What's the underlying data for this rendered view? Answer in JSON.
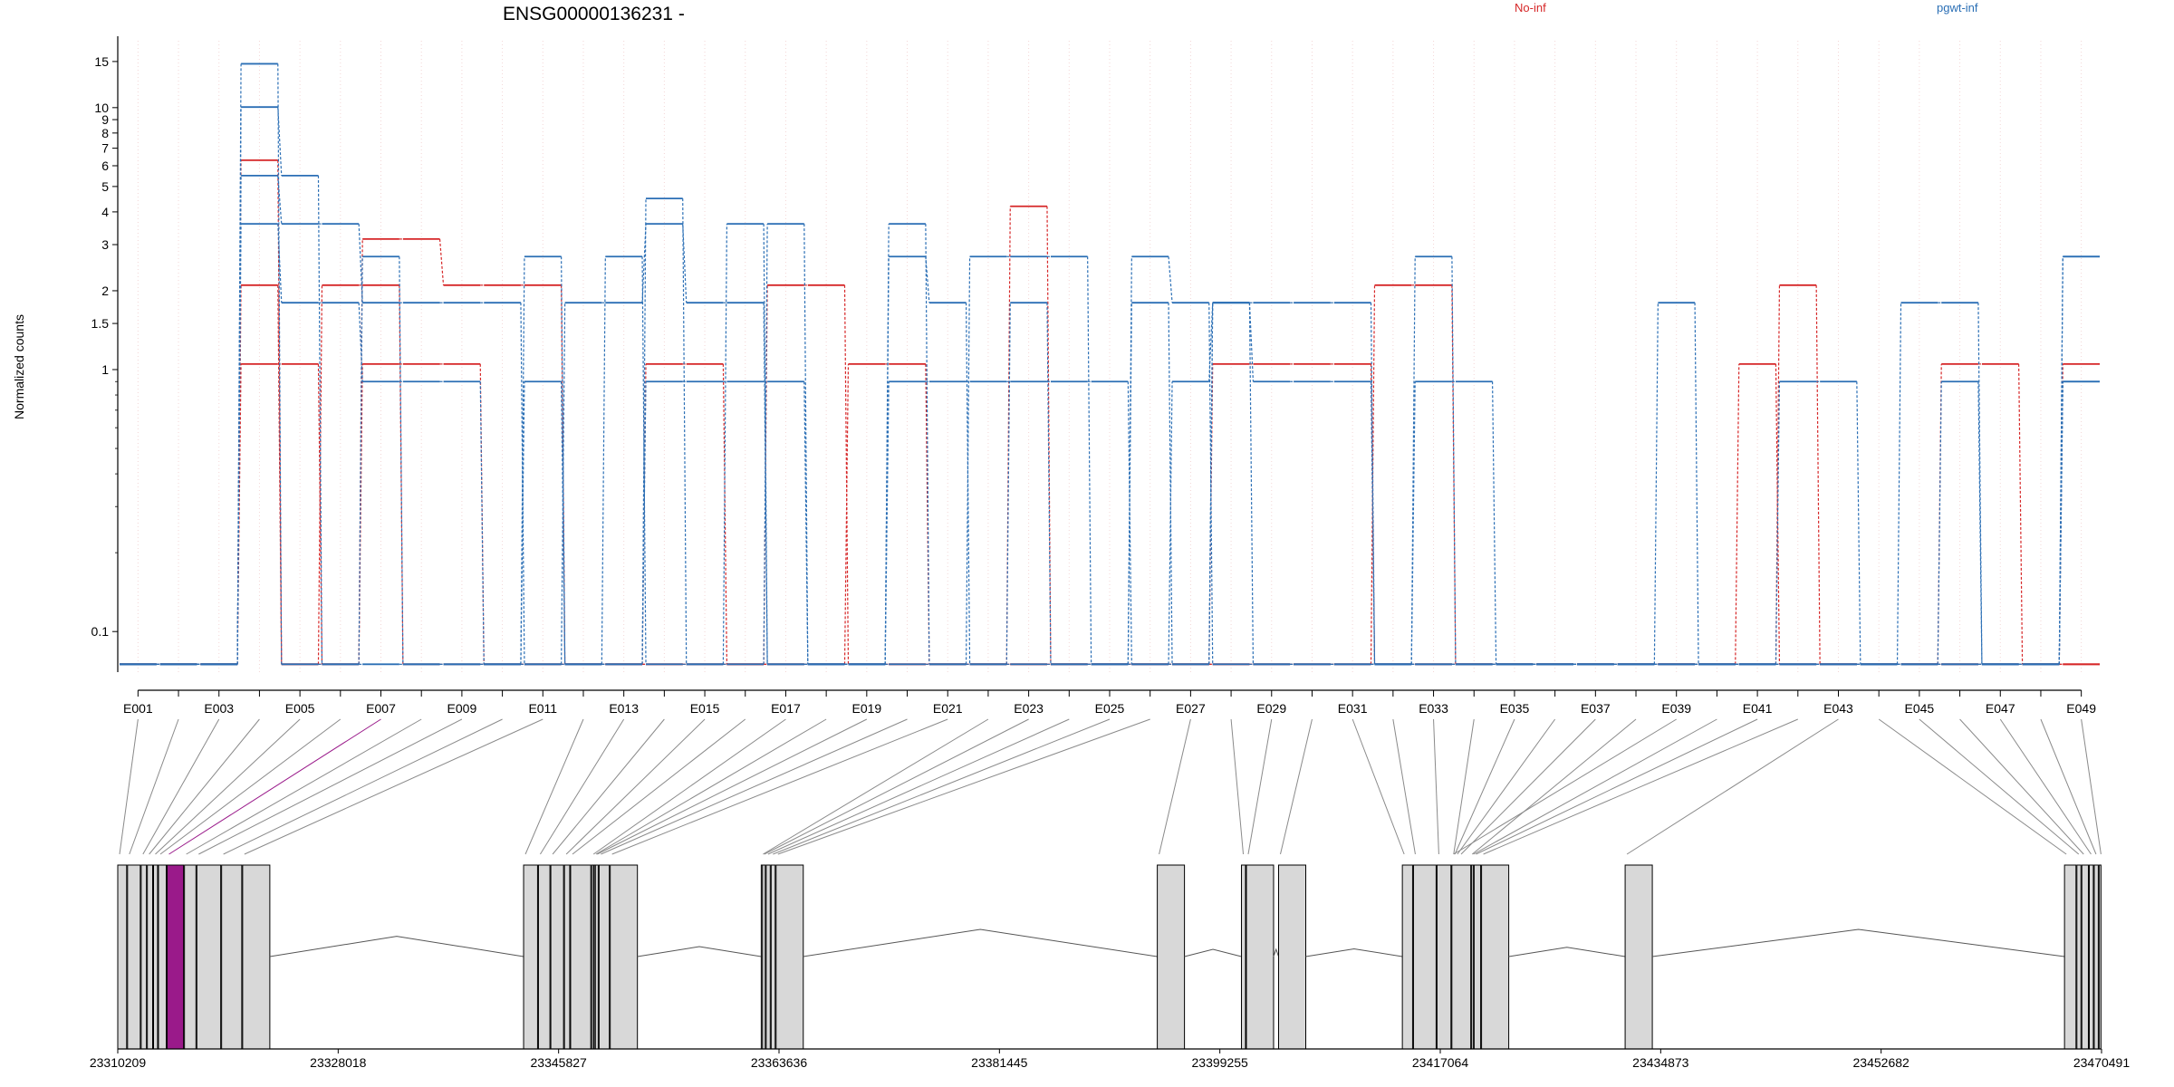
{
  "chart_data": {
    "type": "line",
    "title": "ENSG00000136231 -",
    "ylabel": "Normalized counts",
    "yscale": "log",
    "ylim": [
      0.07,
      18
    ],
    "y_ticks": [
      {
        "value": 0.1,
        "label": "0.1"
      },
      {
        "value": 1,
        "label": "1"
      },
      {
        "value": 1.5,
        "label": "1.5"
      },
      {
        "value": 2,
        "label": "2"
      },
      {
        "value": 3,
        "label": "3"
      },
      {
        "value": 4,
        "label": "4"
      },
      {
        "value": 5,
        "label": "5"
      },
      {
        "value": 6,
        "label": "6"
      },
      {
        "value": 7,
        "label": "7"
      },
      {
        "value": 8,
        "label": "8"
      },
      {
        "value": 9,
        "label": "9"
      },
      {
        "value": 10,
        "label": "10"
      },
      {
        "value": 15,
        "label": "15"
      }
    ],
    "zero_value": 0.075,
    "x_tick_labels": [
      "E001",
      "E003",
      "E005",
      "E007",
      "E009",
      "E011",
      "E013",
      "E015",
      "E017",
      "E019",
      "E021",
      "E023",
      "E025",
      "E027",
      "E029",
      "E031",
      "E033",
      "E035",
      "E037",
      "E039",
      "E041",
      "E043",
      "E045",
      "E047",
      "E049"
    ],
    "exon_count": 49,
    "grid": "vertical-dotted",
    "legend_position": "top",
    "legend": [
      {
        "name": "No-inf",
        "color": "#d62728"
      },
      {
        "name": "pgwt-inf",
        "color": "#2b6fb5"
      }
    ],
    "series": [
      {
        "group": "No-inf",
        "color": "#d62728",
        "values": [
          0,
          0,
          0,
          6.3,
          0,
          0,
          3.15,
          3.15,
          2.1,
          2.1,
          2.1,
          0,
          0,
          0,
          0,
          0,
          0,
          0,
          0,
          0,
          0,
          0,
          4.2,
          0,
          0,
          0,
          0,
          0,
          0,
          0,
          0,
          0,
          0,
          0,
          0,
          0,
          0,
          0,
          0,
          0,
          0,
          0,
          0,
          0,
          0,
          0,
          0,
          0,
          0
        ]
      },
      {
        "group": "No-inf",
        "color": "#d62728",
        "values": [
          0,
          0,
          0,
          2.1,
          0,
          2.1,
          2.1,
          0,
          0,
          0,
          0,
          0,
          0,
          0,
          0,
          0,
          2.1,
          2.1,
          0,
          0,
          0,
          0,
          0,
          0,
          0,
          0,
          0,
          0,
          0,
          0,
          0,
          2.1,
          2.1,
          0,
          0,
          0,
          0,
          0,
          0,
          0,
          0,
          2.1,
          0,
          0,
          0,
          0,
          0,
          0,
          0
        ]
      },
      {
        "group": "No-inf",
        "color": "#d62728",
        "values": [
          0,
          0,
          0,
          1.05,
          1.05,
          0,
          1.05,
          1.05,
          1.05,
          0,
          0,
          0,
          0,
          1.05,
          1.05,
          0,
          0,
          0,
          1.05,
          1.05,
          0,
          0,
          0,
          0,
          0,
          0,
          0,
          1.05,
          1.05,
          1.05,
          1.05,
          0,
          0,
          0,
          0,
          0,
          0,
          0,
          0,
          0,
          1.05,
          0,
          0,
          0,
          0,
          1.05,
          1.05,
          0,
          1.05
        ]
      },
      {
        "group": "pgwt-inf",
        "color": "#2b6fb5",
        "values": [
          0,
          0,
          0,
          14.7,
          0,
          0,
          0,
          0,
          0,
          0,
          0,
          0,
          0,
          4.5,
          0,
          3.6,
          0,
          0,
          0,
          3.6,
          0,
          0,
          0,
          0,
          0,
          2.7,
          1.8,
          0,
          0,
          0,
          0,
          0,
          2.7,
          0,
          0,
          0,
          0,
          0,
          0,
          0,
          0,
          0,
          0,
          0,
          0,
          0,
          0,
          0,
          2.7
        ]
      },
      {
        "group": "pgwt-inf",
        "color": "#2b6fb5",
        "values": [
          0,
          0,
          0,
          10.05,
          5.5,
          0,
          2.7,
          0,
          0,
          0,
          2.7,
          0,
          2.7,
          0,
          0,
          0,
          3.6,
          0,
          0,
          0,
          0,
          2.7,
          2.7,
          2.7,
          0,
          0,
          0,
          1.8,
          0,
          0,
          0,
          0,
          0,
          0,
          0,
          0,
          0,
          0,
          1.8,
          0,
          0,
          0,
          0,
          0,
          1.8,
          1.8,
          0,
          0,
          2.7
        ]
      },
      {
        "group": "pgwt-inf",
        "color": "#2b6fb5",
        "values": [
          0,
          0,
          0,
          5.5,
          3.6,
          3.6,
          1.8,
          1.8,
          1.8,
          1.8,
          0,
          1.8,
          1.8,
          3.6,
          1.8,
          1.8,
          0,
          0,
          0,
          2.7,
          1.8,
          0,
          1.8,
          0,
          0,
          1.8,
          0,
          1.8,
          1.8,
          1.8,
          1.8,
          0,
          0,
          0,
          0,
          0,
          0,
          0,
          0,
          0,
          0,
          0,
          0,
          0,
          0,
          0,
          0,
          0,
          0.9
        ]
      },
      {
        "group": "pgwt-inf",
        "color": "#2b6fb5",
        "values": [
          0,
          0,
          0,
          3.6,
          1.8,
          1.8,
          0.9,
          0.9,
          0.9,
          0,
          0.9,
          0,
          0,
          0.9,
          0.9,
          0.9,
          0.9,
          0,
          0,
          0.9,
          0.9,
          0.9,
          0.9,
          0.9,
          0.9,
          0,
          0.9,
          1.8,
          0.9,
          0.9,
          0.9,
          0,
          0.9,
          0.9,
          0,
          0,
          0,
          0,
          0,
          0,
          0,
          0.9,
          0.9,
          0,
          0,
          0.9,
          0,
          0,
          0.9
        ]
      }
    ],
    "genomic_axis": {
      "labels": [
        "23310209",
        "23328018",
        "23345827",
        "23363636",
        "23381445",
        "23399255",
        "23417064",
        "23434873",
        "23452682",
        "23470491"
      ],
      "start": 23310209,
      "end": 23470491
    },
    "exon_genomic_starts": [
      23310209,
      23311000,
      23312100,
      23312600,
      23313100,
      23313500,
      23314200,
      23315600,
      23316600,
      23318600,
      23320300,
      23343000,
      23344200,
      23345200,
      23346300,
      23346800,
      23348500,
      23348700,
      23348800,
      23349100,
      23350000,
      23362200,
      23362300,
      23362600,
      23363000,
      23363400,
      23394200,
      23401000,
      23401400,
      23404000,
      23414000,
      23414900,
      23416800,
      23418000,
      23418100,
      23418300,
      23418600,
      23419500,
      23418000,
      23419600,
      23419800,
      23420400,
      23432000,
      23467500,
      23468500,
      23468900,
      23469500,
      23469900,
      23470300
    ],
    "highlighted_exon": "E007",
    "highlight_color": "#9a1a8a"
  }
}
